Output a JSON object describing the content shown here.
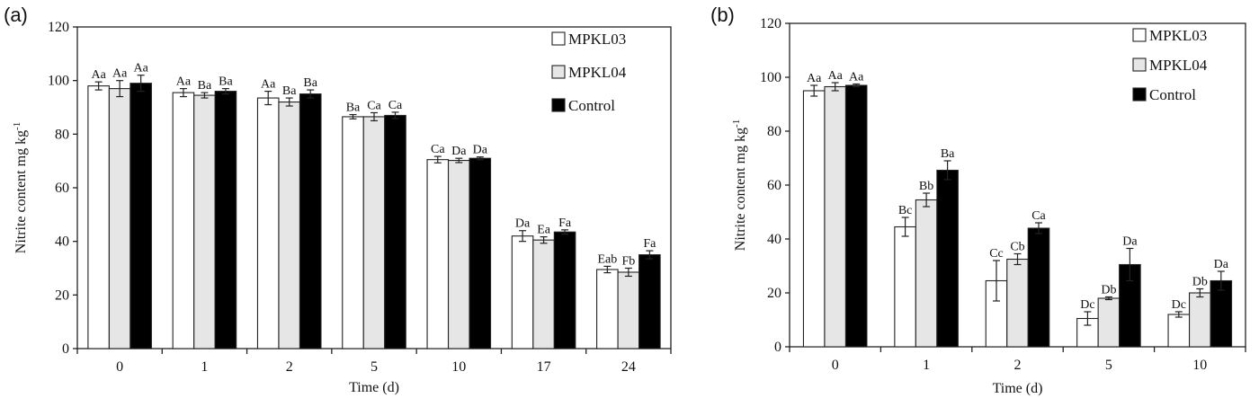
{
  "chart_data": [
    {
      "panel_label": "(a)",
      "type": "bar",
      "xlabel": "Time (d)",
      "ylabel": "Nitrite content  mg kg",
      "ylabel_sup": "-1",
      "ylim": [
        0,
        120
      ],
      "yticks": [
        "0",
        "20",
        "40",
        "60",
        "80",
        "100",
        "120"
      ],
      "categories": [
        "0",
        "1",
        "2",
        "5",
        "10",
        "17",
        "24"
      ],
      "legend_placement": "top-right",
      "series": [
        {
          "name": "MPKL03",
          "color": "#ffffff",
          "values": [
            98,
            95.5,
            93.5,
            86.5,
            70.5,
            42,
            29.5
          ],
          "errors": [
            1.5,
            1.5,
            2.5,
            0.8,
            1.2,
            2,
            1.2
          ],
          "labels": [
            "Aa",
            "Aa",
            "Aa",
            "Ba",
            "Ca",
            "Da",
            "Eab"
          ]
        },
        {
          "name": "MPKL04",
          "color": "#e6e6e6",
          "values": [
            97,
            94.5,
            92,
            86.5,
            70.2,
            40.5,
            28.5
          ],
          "errors": [
            3,
            1,
            1.5,
            1.5,
            0.8,
            1.2,
            1.5
          ],
          "labels": [
            "Aa",
            "Ba",
            "Ba",
            "Ca",
            "Da",
            "Ea",
            "Fb"
          ]
        },
        {
          "name": "Control",
          "color": "#000000",
          "values": [
            99,
            96,
            95,
            87,
            71,
            43.5,
            35
          ],
          "errors": [
            3,
            1,
            1.5,
            1.2,
            0.5,
            0.8,
            1.5
          ],
          "labels": [
            "Aa",
            "Ba",
            "Ba",
            "Ca",
            "Da",
            "Fa",
            "Fa"
          ]
        }
      ]
    },
    {
      "panel_label": "(b)",
      "type": "bar",
      "xlabel": "Time (d)",
      "ylabel": "Nitrite content mg kg",
      "ylabel_sup": "-1",
      "ylim": [
        0,
        120
      ],
      "yticks": [
        "0",
        "20",
        "40",
        "60",
        "80",
        "100",
        "120"
      ],
      "categories": [
        "0",
        "1",
        "2",
        "5",
        "10"
      ],
      "legend_placement": "top-right",
      "series": [
        {
          "name": "MPKL03",
          "color": "#ffffff",
          "values": [
            95,
            44.5,
            24.5,
            10.5,
            12
          ],
          "errors": [
            2,
            3.5,
            7.5,
            2.5,
            1
          ],
          "labels": [
            "Aa",
            "Bc",
            "Cc",
            "Dc",
            "Dc"
          ]
        },
        {
          "name": "MPKL04",
          "color": "#e6e6e6",
          "values": [
            96.5,
            54.5,
            32.5,
            18,
            20
          ],
          "errors": [
            1.5,
            2.5,
            2,
            0.5,
            1.5
          ],
          "labels": [
            "Aa",
            "Bb",
            "Cb",
            "Db",
            "Db"
          ]
        },
        {
          "name": "Control",
          "color": "#000000",
          "values": [
            97,
            65.5,
            44,
            30.5,
            24.5
          ],
          "errors": [
            0.5,
            3.5,
            2,
            6,
            3.5
          ],
          "labels": [
            "Aa",
            "Ba",
            "Ca",
            "Da",
            "Da"
          ]
        }
      ]
    }
  ]
}
